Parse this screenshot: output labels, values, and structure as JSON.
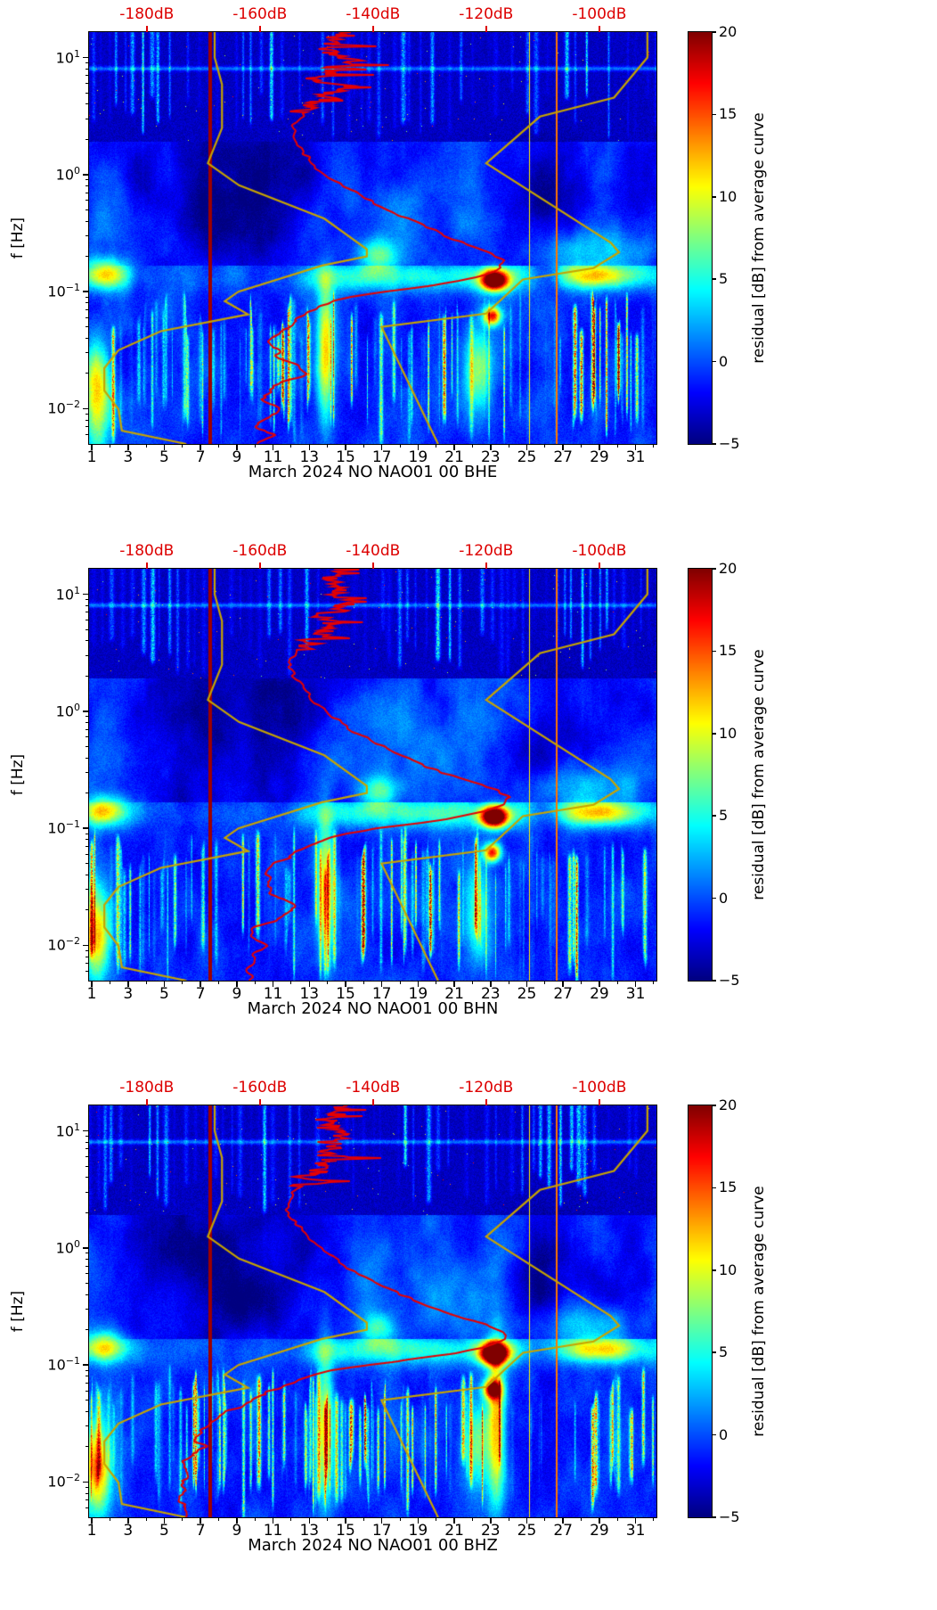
{
  "chart_data": {
    "type": "heatmap",
    "description": "Three seismic PPSD residual spectrograms (pcolormesh, jet colormap) for station NO NAO01 channels BHE, BHN, BHZ during March 2024, with red median PSD curve and dark-yellow Peterson NLNM/NHNM noise model curves plotted against a secondary top dB axis.",
    "shared": {
      "x_axis": {
        "unit": "day of month",
        "ticks": [
          1,
          3,
          5,
          7,
          9,
          11,
          13,
          15,
          17,
          19,
          21,
          23,
          25,
          27,
          29,
          31
        ],
        "range_days": [
          0.85,
          32.15
        ]
      },
      "y_axis": {
        "label": "f [Hz]",
        "scale": "log",
        "range_hz": [
          0.005,
          16.5
        ],
        "ticks": [
          {
            "exp_label": "1",
            "L": 1
          },
          {
            "exp_label": "0",
            "L": 0
          },
          {
            "exp_label": "−1",
            "L": -1
          },
          {
            "exp_label": "−2",
            "L": -2
          }
        ]
      },
      "top_axis": {
        "color": "#dd0000",
        "range_db": [
          -190.2,
          -89.9
        ],
        "ticks": [
          {
            "db": -180,
            "label": "-180dB"
          },
          {
            "db": -160,
            "label": "-160dB"
          },
          {
            "db": -140,
            "label": "-140dB"
          },
          {
            "db": -120,
            "label": "-120dB"
          },
          {
            "db": -100,
            "label": "-100dB"
          }
        ]
      },
      "colorbar": {
        "label": "residual [dB] from average curve",
        "vmin": -5,
        "vmax": 20,
        "cmap": "jet",
        "ticks": [
          {
            "v": 20,
            "label": "20"
          },
          {
            "v": 15,
            "label": "15"
          },
          {
            "v": 10,
            "label": "10"
          },
          {
            "v": 5,
            "label": "5"
          },
          {
            "v": 0,
            "label": "0"
          },
          {
            "v": -5,
            "label": "−5"
          }
        ]
      },
      "colors": {
        "median_curve": "#e60000",
        "noise_model": "#c7a400",
        "tick_text": "#000000"
      },
      "noise_models": {
        "nlnm_f_db": [
          [
            16.5,
            -168.0
          ],
          [
            10.0,
            -168.0
          ],
          [
            5.9,
            -166.7
          ],
          [
            2.5,
            -166.7
          ],
          [
            1.25,
            -169.2
          ],
          [
            0.81,
            -163.7
          ],
          [
            0.42,
            -148.6
          ],
          [
            0.23,
            -141.1
          ],
          [
            0.2,
            -141.1
          ],
          [
            0.167,
            -149.0
          ],
          [
            0.1,
            -163.8
          ],
          [
            0.083,
            -166.2
          ],
          [
            0.064,
            -162.1
          ],
          [
            0.046,
            -177.5
          ],
          [
            0.0316,
            -185.0
          ],
          [
            0.0222,
            -187.5
          ],
          [
            0.0143,
            -187.5
          ],
          [
            0.0099,
            -185.0
          ],
          [
            0.0065,
            -184.4
          ],
          [
            0.005,
            -173.0
          ]
        ],
        "nhnm_f_db": [
          [
            16.5,
            -91.5
          ],
          [
            10.0,
            -91.5
          ],
          [
            4.55,
            -97.4
          ],
          [
            3.13,
            -110.5
          ],
          [
            1.25,
            -120.0
          ],
          [
            0.263,
            -98.0
          ],
          [
            0.217,
            -96.5
          ],
          [
            0.159,
            -101.0
          ],
          [
            0.127,
            -113.5
          ],
          [
            0.065,
            -120.0
          ],
          [
            0.05,
            -138.5
          ],
          [
            0.005,
            -128.5
          ]
        ]
      }
    },
    "panels": [
      {
        "title": "March 2024 NO NAO01 00 BHE",
        "seed": 11,
        "median_psd_f_db": [
          [
            16.5,
            -146
          ],
          [
            12,
            -148
          ],
          [
            9,
            -145
          ],
          [
            7,
            -149
          ],
          [
            5.5,
            -146
          ],
          [
            4.2,
            -150
          ],
          [
            3.4,
            -152
          ],
          [
            2.6,
            -154
          ],
          [
            2.0,
            -154
          ],
          [
            1.5,
            -152
          ],
          [
            1.15,
            -150
          ],
          [
            0.9,
            -147
          ],
          [
            0.7,
            -143
          ],
          [
            0.55,
            -139
          ],
          [
            0.42,
            -134
          ],
          [
            0.33,
            -129
          ],
          [
            0.27,
            -125
          ],
          [
            0.22,
            -120
          ],
          [
            0.185,
            -117
          ],
          [
            0.16,
            -117.5
          ],
          [
            0.14,
            -120
          ],
          [
            0.125,
            -124
          ],
          [
            0.112,
            -130
          ],
          [
            0.1,
            -138
          ],
          [
            0.09,
            -144
          ],
          [
            0.08,
            -148
          ],
          [
            0.068,
            -151
          ],
          [
            0.058,
            -154
          ],
          [
            0.05,
            -156
          ],
          [
            0.042,
            -157.5
          ],
          [
            0.035,
            -158
          ],
          [
            0.029,
            -157
          ],
          [
            0.024,
            -154
          ],
          [
            0.02,
            -152
          ],
          [
            0.017,
            -155
          ],
          [
            0.014,
            -158
          ],
          [
            0.012,
            -159
          ],
          [
            0.01,
            -157
          ],
          [
            0.0085,
            -159
          ],
          [
            0.007,
            -160
          ],
          [
            0.006,
            -159
          ],
          [
            0.005,
            -160
          ]
        ],
        "features": [
          {
            "kind": "vline",
            "day": 7.55,
            "width_days": 0.2,
            "value_db": 19.3
          },
          {
            "kind": "vline",
            "day": 25.15,
            "width_days": 0.06,
            "value_db": 11
          },
          {
            "kind": "vline",
            "day": 26.65,
            "width_days": 0.08,
            "value_db": 14
          },
          {
            "kind": "blob",
            "day": 23.2,
            "f_hz": 0.125,
            "sigma_days": 0.5,
            "sigma_logf": 0.06,
            "amp_db": 26
          },
          {
            "kind": "blob",
            "day": 23.1,
            "f_hz": 0.062,
            "sigma_days": 0.33,
            "sigma_logf": 0.055,
            "amp_db": 17
          },
          {
            "kind": "blob",
            "day": 1.7,
            "f_hz": 0.14,
            "sigma_days": 0.9,
            "sigma_logf": 0.09,
            "amp_db": 12
          },
          {
            "kind": "blob",
            "day": 1.3,
            "f_hz": 0.013,
            "sigma_days": 0.55,
            "sigma_logf": 0.3,
            "amp_db": 13
          },
          {
            "kind": "blob",
            "day": 13.9,
            "f_hz": 0.03,
            "sigma_days": 0.32,
            "sigma_logf": 0.42,
            "amp_db": 12
          },
          {
            "kind": "blob",
            "day": 28.9,
            "f_hz": 0.135,
            "sigma_days": 1.3,
            "sigma_logf": 0.07,
            "amp_db": 8
          },
          {
            "kind": "blob",
            "day": 28.5,
            "f_hz": 0.22,
            "sigma_days": 2.0,
            "sigma_logf": 0.13,
            "amp_db": 5
          },
          {
            "kind": "blob",
            "day": 26.2,
            "f_hz": 0.6,
            "sigma_days": 1.4,
            "sigma_logf": 0.28,
            "amp_db": -3.5
          },
          {
            "kind": "blob",
            "day": 22.3,
            "f_hz": 0.02,
            "sigma_days": 0.55,
            "sigma_logf": 0.3,
            "amp_db": 8
          },
          {
            "kind": "blob",
            "day": 16.8,
            "f_hz": 0.2,
            "sigma_days": 0.7,
            "sigma_logf": 0.1,
            "amp_db": 7
          }
        ]
      },
      {
        "title": "March 2024 NO NAO01 00 BHN",
        "seed": 23,
        "median_psd_f_db": [
          [
            16.5,
            -146
          ],
          [
            12,
            -148
          ],
          [
            9,
            -145
          ],
          [
            7,
            -149
          ],
          [
            5.5,
            -147
          ],
          [
            4.2,
            -151
          ],
          [
            3.4,
            -153
          ],
          [
            2.6,
            -155
          ],
          [
            2.0,
            -154
          ],
          [
            1.5,
            -152
          ],
          [
            1.15,
            -150
          ],
          [
            0.9,
            -147
          ],
          [
            0.7,
            -144
          ],
          [
            0.55,
            -140
          ],
          [
            0.42,
            -135
          ],
          [
            0.33,
            -130
          ],
          [
            0.27,
            -125
          ],
          [
            0.22,
            -119
          ],
          [
            0.185,
            -116
          ],
          [
            0.16,
            -117
          ],
          [
            0.14,
            -120
          ],
          [
            0.125,
            -125
          ],
          [
            0.112,
            -131
          ],
          [
            0.1,
            -139
          ],
          [
            0.09,
            -145
          ],
          [
            0.08,
            -149
          ],
          [
            0.068,
            -152
          ],
          [
            0.058,
            -155
          ],
          [
            0.05,
            -157
          ],
          [
            0.042,
            -158
          ],
          [
            0.035,
            -159
          ],
          [
            0.029,
            -158
          ],
          [
            0.024,
            -156
          ],
          [
            0.02,
            -153
          ],
          [
            0.017,
            -157
          ],
          [
            0.014,
            -160
          ],
          [
            0.012,
            -161
          ],
          [
            0.01,
            -159
          ],
          [
            0.0085,
            -161
          ],
          [
            0.007,
            -162
          ],
          [
            0.006,
            -161
          ],
          [
            0.005,
            -162
          ]
        ],
        "features": [
          {
            "kind": "vline",
            "day": 7.55,
            "width_days": 0.2,
            "value_db": 19.3
          },
          {
            "kind": "vline",
            "day": 25.15,
            "width_days": 0.06,
            "value_db": 11
          },
          {
            "kind": "vline",
            "day": 26.65,
            "width_days": 0.08,
            "value_db": 14
          },
          {
            "kind": "blob",
            "day": 23.2,
            "f_hz": 0.125,
            "sigma_days": 0.5,
            "sigma_logf": 0.06,
            "amp_db": 27
          },
          {
            "kind": "blob",
            "day": 23.1,
            "f_hz": 0.062,
            "sigma_days": 0.33,
            "sigma_logf": 0.055,
            "amp_db": 17
          },
          {
            "kind": "blob",
            "day": 1.7,
            "f_hz": 0.14,
            "sigma_days": 0.9,
            "sigma_logf": 0.09,
            "amp_db": 12
          },
          {
            "kind": "blob",
            "day": 1.3,
            "f_hz": 0.013,
            "sigma_days": 0.55,
            "sigma_logf": 0.3,
            "amp_db": 13
          },
          {
            "kind": "blob",
            "day": 13.9,
            "f_hz": 0.03,
            "sigma_days": 0.32,
            "sigma_logf": 0.42,
            "amp_db": 12
          },
          {
            "kind": "blob",
            "day": 28.9,
            "f_hz": 0.135,
            "sigma_days": 1.3,
            "sigma_logf": 0.07,
            "amp_db": 8
          },
          {
            "kind": "blob",
            "day": 28.5,
            "f_hz": 0.22,
            "sigma_days": 2.0,
            "sigma_logf": 0.13,
            "amp_db": 5
          },
          {
            "kind": "blob",
            "day": 26.2,
            "f_hz": 0.6,
            "sigma_days": 1.4,
            "sigma_logf": 0.28,
            "amp_db": -3.5
          },
          {
            "kind": "blob",
            "day": 22.3,
            "f_hz": 0.02,
            "sigma_days": 0.55,
            "sigma_logf": 0.3,
            "amp_db": 8
          },
          {
            "kind": "blob",
            "day": 16.8,
            "f_hz": 0.2,
            "sigma_days": 0.7,
            "sigma_logf": 0.1,
            "amp_db": 7
          }
        ]
      },
      {
        "title": "March 2024 NO NAO01 00 BHZ",
        "seed": 37,
        "median_psd_f_db": [
          [
            16.5,
            -146
          ],
          [
            12,
            -148
          ],
          [
            9,
            -146
          ],
          [
            7,
            -149
          ],
          [
            5.5,
            -147
          ],
          [
            4.2,
            -151
          ],
          [
            3.4,
            -153
          ],
          [
            2.6,
            -155
          ],
          [
            2.0,
            -155
          ],
          [
            1.5,
            -153
          ],
          [
            1.15,
            -151
          ],
          [
            0.9,
            -148
          ],
          [
            0.7,
            -145
          ],
          [
            0.55,
            -141
          ],
          [
            0.42,
            -136
          ],
          [
            0.33,
            -131
          ],
          [
            0.27,
            -126
          ],
          [
            0.22,
            -120
          ],
          [
            0.19,
            -116.5
          ],
          [
            0.16,
            -117
          ],
          [
            0.14,
            -121
          ],
          [
            0.125,
            -126
          ],
          [
            0.112,
            -133
          ],
          [
            0.1,
            -141
          ],
          [
            0.09,
            -147
          ],
          [
            0.08,
            -151
          ],
          [
            0.068,
            -155
          ],
          [
            0.058,
            -159
          ],
          [
            0.05,
            -162
          ],
          [
            0.042,
            -164.5
          ],
          [
            0.035,
            -167
          ],
          [
            0.029,
            -169
          ],
          [
            0.024,
            -171
          ],
          [
            0.02,
            -169
          ],
          [
            0.017,
            -172
          ],
          [
            0.014,
            -174
          ],
          [
            0.012,
            -173
          ],
          [
            0.01,
            -174
          ],
          [
            0.0085,
            -172
          ],
          [
            0.007,
            -174
          ],
          [
            0.006,
            -173
          ],
          [
            0.005,
            -174
          ]
        ],
        "features": [
          {
            "kind": "vline",
            "day": 7.55,
            "width_days": 0.2,
            "value_db": 19.3
          },
          {
            "kind": "vline",
            "day": 25.15,
            "width_days": 0.06,
            "value_db": 11
          },
          {
            "kind": "vline",
            "day": 26.65,
            "width_days": 0.08,
            "value_db": 14
          },
          {
            "kind": "blob",
            "day": 23.2,
            "f_hz": 0.125,
            "sigma_days": 0.5,
            "sigma_logf": 0.06,
            "amp_db": 30
          },
          {
            "kind": "blob",
            "day": 23.1,
            "f_hz": 0.062,
            "sigma_days": 0.33,
            "sigma_logf": 0.055,
            "amp_db": 19
          },
          {
            "kind": "blob",
            "day": 23.3,
            "f_hz": 0.033,
            "sigma_days": 0.34,
            "sigma_logf": 0.5,
            "amp_db": 12
          },
          {
            "kind": "blob",
            "day": 1.7,
            "f_hz": 0.14,
            "sigma_days": 0.9,
            "sigma_logf": 0.09,
            "amp_db": 12
          },
          {
            "kind": "blob",
            "day": 1.3,
            "f_hz": 0.013,
            "sigma_days": 0.55,
            "sigma_logf": 0.3,
            "amp_db": 14
          },
          {
            "kind": "blob",
            "day": 13.9,
            "f_hz": 0.03,
            "sigma_days": 0.32,
            "sigma_logf": 0.42,
            "amp_db": 12
          },
          {
            "kind": "blob",
            "day": 28.9,
            "f_hz": 0.135,
            "sigma_days": 1.3,
            "sigma_logf": 0.07,
            "amp_db": 8
          },
          {
            "kind": "blob",
            "day": 28.5,
            "f_hz": 0.22,
            "sigma_days": 2.0,
            "sigma_logf": 0.13,
            "amp_db": 5
          },
          {
            "kind": "blob",
            "day": 26.2,
            "f_hz": 0.6,
            "sigma_days": 1.4,
            "sigma_logf": 0.28,
            "amp_db": -3.5
          },
          {
            "kind": "blob",
            "day": 22.3,
            "f_hz": 0.02,
            "sigma_days": 0.55,
            "sigma_logf": 0.3,
            "amp_db": 8
          },
          {
            "kind": "blob",
            "day": 16.8,
            "f_hz": 0.2,
            "sigma_days": 0.7,
            "sigma_logf": 0.1,
            "amp_db": 7
          }
        ]
      }
    ]
  }
}
